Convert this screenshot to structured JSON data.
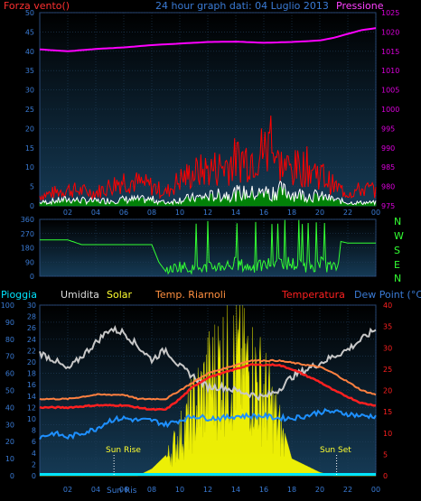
{
  "header": {
    "wind_label": "Forza vento()",
    "title": "24 hour graph dati: 04 Luglio 2013",
    "pressure_label": "Pressione"
  },
  "lower_header": {
    "rain": "Pioggia",
    "humidity": "Umidita",
    "solar": "Solar",
    "windchill": "Temp. Riarnoli",
    "temperature": "Temperatura",
    "dewpoint": "Dew Point (°C)"
  },
  "compass": [
    "N",
    "W",
    "S",
    "E",
    "N"
  ],
  "annotations": {
    "sunrise": "Sun Rise",
    "sunset": "Sun Set",
    "overlap": "Sun Ris"
  },
  "colors": {
    "axis_text": "#3a7bd5",
    "pressure": "#ff00ff",
    "wind_gust": "#ff0000",
    "wind_avg": "#ffffff",
    "wind_dir": "#33ff33",
    "solar": "#ffff00",
    "temperature": "#ff2020",
    "windchill": "#ff8040",
    "humidity": "#c8c8c8",
    "dewpoint": "#1e90ff",
    "rain": "#00e5ff"
  },
  "chart_data": [
    {
      "type": "line",
      "name": "wind_pressure",
      "x_tick_labels": [
        "02",
        "04",
        "06",
        "08",
        "10",
        "12",
        "14",
        "16",
        "18",
        "20",
        "22",
        "00"
      ],
      "left_axis": {
        "label": "Forza vento()",
        "ticks": [
          0,
          5,
          10,
          15,
          20,
          25,
          30,
          35,
          40,
          45,
          50
        ],
        "range": [
          0,
          50
        ]
      },
      "right_axis": {
        "label": "Pressione",
        "ticks": [
          975,
          980,
          985,
          990,
          995,
          1000,
          1005,
          1010,
          1015,
          1020,
          1025
        ],
        "range": [
          975,
          1025
        ]
      },
      "series": [
        {
          "name": "Pressione",
          "axis": "right",
          "x": [
            0,
            2,
            4,
            6,
            8,
            10,
            12,
            14,
            16,
            18,
            20,
            21,
            22,
            23,
            24
          ],
          "y": [
            1015.5,
            1015,
            1015.6,
            1016,
            1016.6,
            1017,
            1017.4,
            1017.5,
            1017.2,
            1017.4,
            1017.8,
            1018.5,
            1019.5,
            1020.5,
            1021
          ]
        },
        {
          "name": "gust",
          "axis": "left",
          "x": [
            0,
            2,
            4,
            6,
            7,
            8,
            9,
            10,
            11,
            12,
            13,
            14,
            15,
            16,
            16.5,
            17,
            18,
            19,
            20,
            21,
            22,
            23,
            24
          ],
          "y": [
            3,
            5,
            4,
            8,
            7,
            6,
            4,
            8,
            10,
            11,
            12,
            14,
            15,
            17,
            19,
            13,
            11,
            12,
            10,
            6,
            4,
            5,
            5
          ]
        },
        {
          "name": "average",
          "axis": "left",
          "x": [
            0,
            2,
            4,
            6,
            8,
            9,
            10,
            12,
            14,
            16,
            17,
            18,
            20,
            21,
            22,
            23,
            24
          ],
          "y": [
            1,
            2,
            1.5,
            2,
            2,
            1,
            2,
            3,
            4,
            4,
            5,
            4,
            3,
            2,
            1,
            1,
            1
          ]
        }
      ]
    },
    {
      "type": "line",
      "name": "wind_direction",
      "left_axis": {
        "ticks": [
          0,
          90,
          180,
          270,
          360
        ],
        "range": [
          0,
          360
        ]
      },
      "right_axis": {
        "labels": [
          "N",
          "W",
          "S",
          "E",
          "N"
        ]
      },
      "series": [
        {
          "name": "direction",
          "x": [
            0,
            2,
            3,
            4,
            6,
            8,
            8.5,
            9,
            10,
            11,
            12,
            13,
            14,
            15,
            16,
            17,
            18,
            19,
            20,
            21,
            21.3,
            21.5,
            22,
            24
          ],
          "y": [
            230,
            230,
            200,
            200,
            200,
            200,
            90,
            30,
            60,
            40,
            50,
            60,
            70,
            50,
            60,
            90,
            70,
            60,
            70,
            50,
            60,
            220,
            210,
            210
          ]
        }
      ]
    },
    {
      "type": "line",
      "name": "temp_hum_solar",
      "axes": {
        "rain": {
          "ticks": [
            0,
            10,
            20,
            30,
            40,
            50,
            60,
            70,
            80,
            90,
            100
          ],
          "range": [
            0,
            100
          ]
        },
        "humidity": {
          "ticks": [
            0,
            2,
            4,
            6,
            8,
            10,
            12,
            14,
            16,
            18,
            20,
            22,
            24,
            26,
            28,
            30
          ],
          "range": [
            0,
            30
          ]
        },
        "temperature": {
          "ticks": [
            0,
            5,
            10,
            15,
            20,
            25,
            30,
            35,
            40
          ],
          "range": [
            0,
            40
          ]
        }
      },
      "series": [
        {
          "name": "Umidita",
          "x": [
            0,
            1,
            2,
            3,
            4,
            5,
            6,
            7,
            8,
            9,
            10,
            11,
            12,
            13,
            14,
            15,
            16,
            17,
            18,
            19,
            20,
            21,
            22,
            23,
            24
          ],
          "y": [
            72,
            68,
            62,
            70,
            78,
            86,
            84,
            76,
            68,
            74,
            64,
            58,
            52,
            52,
            50,
            48,
            46,
            50,
            58,
            62,
            66,
            70,
            74,
            80,
            86
          ]
        },
        {
          "name": "Temp. Riarnoli",
          "x": [
            0,
            2,
            4,
            6,
            7,
            8,
            9,
            10,
            11,
            12,
            13,
            14,
            15,
            16,
            17,
            18,
            19,
            20,
            21,
            22,
            23,
            24
          ],
          "y": [
            18,
            18,
            19,
            19,
            18,
            18,
            18,
            20,
            22,
            24,
            25,
            26,
            27,
            27,
            27,
            26.5,
            26,
            25.5,
            24,
            22,
            20,
            19
          ]
        },
        {
          "name": "Temperatura",
          "x": [
            0,
            2,
            4,
            6,
            7,
            8,
            9,
            10,
            11,
            12,
            13,
            14,
            15,
            16,
            17,
            18,
            19,
            20,
            21,
            22,
            23,
            24
          ],
          "y": [
            16,
            16,
            16.5,
            16.5,
            16,
            15.5,
            15.5,
            18,
            21,
            23,
            24,
            25,
            26,
            26,
            26,
            25,
            23.5,
            22,
            20,
            18.5,
            17,
            16.5
          ]
        },
        {
          "name": "Dew Point",
          "x": [
            0,
            1,
            2,
            3,
            4,
            5,
            6,
            7,
            8,
            9,
            10,
            11,
            12,
            13,
            14,
            15,
            16,
            17,
            18,
            19,
            20,
            21,
            22,
            23,
            24
          ],
          "y": [
            9,
            10,
            9,
            10,
            11,
            13,
            13.5,
            13,
            13,
            12,
            13,
            14,
            13.5,
            13.5,
            14,
            14,
            14,
            13.5,
            13.5,
            14,
            15,
            15,
            14.5,
            14,
            14
          ]
        },
        {
          "name": "Solar",
          "x": [
            0,
            5,
            6,
            7,
            8,
            9,
            10,
            11,
            12,
            13,
            14,
            15,
            16,
            17,
            18,
            19,
            20,
            21,
            24
          ],
          "y": [
            0,
            0,
            0,
            0,
            4,
            12,
            30,
            50,
            70,
            85,
            85,
            80,
            65,
            40,
            10,
            6,
            2,
            0,
            0
          ]
        },
        {
          "name": "Pioggia",
          "x": [
            0,
            24
          ],
          "y": [
            0,
            0
          ]
        }
      ],
      "x_tick_labels": [
        "02",
        "04",
        "06",
        "08",
        "10",
        "12",
        "14",
        "16",
        "18",
        "20",
        "22",
        "00"
      ]
    }
  ]
}
